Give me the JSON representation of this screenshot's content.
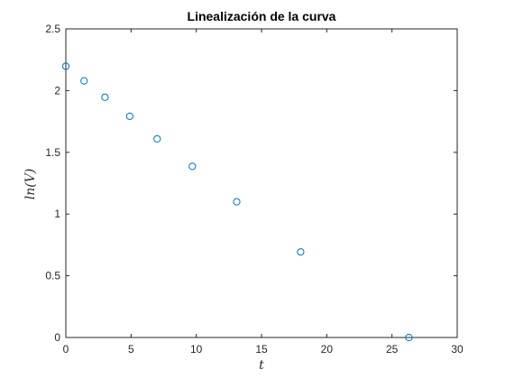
{
  "chart_data": {
    "type": "scatter",
    "title": "Linealización de la curva",
    "xlabel": "t",
    "ylabel": "ln(V)",
    "xlim": [
      0,
      30
    ],
    "ylim": [
      0,
      2.5
    ],
    "xticks": [
      0,
      5,
      10,
      15,
      20,
      25,
      30
    ],
    "yticks": [
      0,
      0.5,
      1,
      1.5,
      2,
      2.5
    ],
    "grid": false,
    "marker": "circle-open",
    "marker_color": "#0072bd",
    "series": [
      {
        "x": [
          0,
          1.4,
          3.0,
          4.9,
          7.0,
          9.7,
          13.1,
          18.0,
          26.3
        ],
        "y": [
          2.197,
          2.079,
          1.946,
          1.792,
          1.609,
          1.386,
          1.099,
          0.693,
          0.0
        ]
      }
    ]
  }
}
